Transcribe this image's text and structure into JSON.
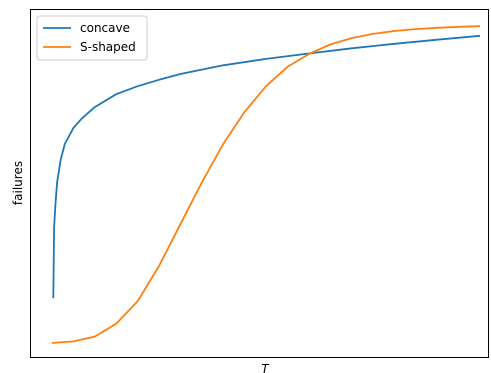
{
  "chart_data": {
    "type": "line",
    "title": "",
    "xlabel": "T",
    "ylabel": "failures",
    "xlim": [
      0,
      1.05
    ],
    "ylim": [
      -0.03,
      1.05
    ],
    "xticks": [],
    "yticks": [],
    "grid": false,
    "legend_position": "top-left",
    "series": [
      {
        "name": "concave",
        "color": "#1f77b4",
        "x": [
          0.003,
          0.005,
          0.008,
          0.012,
          0.02,
          0.03,
          0.05,
          0.07,
          0.1,
          0.15,
          0.2,
          0.25,
          0.3,
          0.4,
          0.5,
          0.6,
          0.7,
          0.8,
          0.9,
          1.0
        ],
        "y": [
          0.14,
          0.36,
          0.43,
          0.5,
          0.57,
          0.62,
          0.67,
          0.7,
          0.735,
          0.775,
          0.8,
          0.82,
          0.838,
          0.865,
          0.885,
          0.902,
          0.918,
          0.932,
          0.945,
          0.957
        ]
      },
      {
        "name": "S-shaped",
        "color": "#ff7f0e",
        "x": [
          0.0,
          0.05,
          0.1,
          0.15,
          0.2,
          0.25,
          0.3,
          0.35,
          0.4,
          0.45,
          0.5,
          0.55,
          0.6,
          0.65,
          0.7,
          0.75,
          0.8,
          0.85,
          0.9,
          0.95,
          1.0
        ],
        "y": [
          0.0,
          0.005,
          0.02,
          0.06,
          0.13,
          0.24,
          0.37,
          0.5,
          0.62,
          0.72,
          0.8,
          0.86,
          0.9,
          0.93,
          0.95,
          0.963,
          0.972,
          0.978,
          0.982,
          0.985,
          0.987
        ]
      }
    ]
  }
}
